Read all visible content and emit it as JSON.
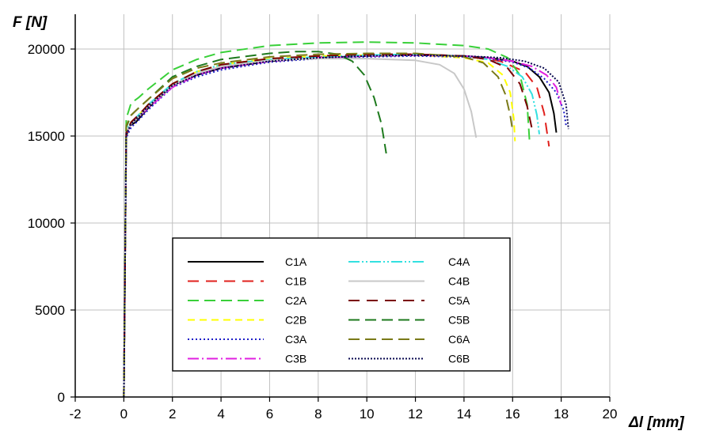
{
  "chart_data": {
    "type": "line",
    "xlabel": "Δl [mm]",
    "ylabel": "F [N]",
    "xlim": [
      -2,
      20
    ],
    "ylim": [
      0,
      22000
    ],
    "xticks": [
      "-2",
      "0",
      "2",
      "4",
      "6",
      "8",
      "10",
      "12",
      "14",
      "16",
      "18",
      "20"
    ],
    "yticks": [
      "0",
      "5000",
      "10000",
      "15000",
      "20000"
    ],
    "grid": "horizontal+vertical",
    "legend_position": "lower-center",
    "series": [
      {
        "name": "C1A",
        "color": "#000000",
        "dash": "solid",
        "x": [
          0,
          0.1,
          0.25,
          0.5,
          1,
          2,
          3,
          4,
          6,
          8,
          10,
          12,
          14,
          15,
          16,
          16.6,
          17.1,
          17.5,
          17.7,
          17.8
        ],
        "y": [
          0,
          15000,
          15600,
          15800,
          16600,
          17900,
          18500,
          18900,
          19300,
          19500,
          19600,
          19650,
          19600,
          19500,
          19300,
          19000,
          18400,
          17500,
          16300,
          15200
        ]
      },
      {
        "name": "C1B",
        "color": "#e0201c",
        "dash": "14,9",
        "x": [
          0,
          0.1,
          0.3,
          0.6,
          1,
          2,
          3,
          4,
          6,
          8,
          10,
          12,
          14,
          15.5,
          16.5,
          17,
          17.3,
          17.5
        ],
        "y": [
          0,
          15100,
          15700,
          16100,
          16700,
          17900,
          18600,
          19000,
          19350,
          19550,
          19650,
          19700,
          19600,
          19300,
          18700,
          17800,
          16300,
          14400
        ]
      },
      {
        "name": "C2A",
        "color": "#39d039",
        "dash": "14,7",
        "x": [
          0,
          0.1,
          0.3,
          0.6,
          1,
          2,
          3,
          4,
          6,
          8,
          10,
          12,
          14,
          15,
          15.8,
          16.3,
          16.6,
          16.7
        ],
        "y": [
          0,
          16000,
          16900,
          17200,
          17700,
          18800,
          19400,
          19800,
          20200,
          20350,
          20400,
          20350,
          20200,
          20000,
          19500,
          18500,
          16800,
          14600
        ]
      },
      {
        "name": "C2B",
        "color": "#ffff00",
        "dash": "9,6",
        "x": [
          0,
          0.1,
          0.3,
          0.6,
          1,
          2,
          3,
          4,
          6,
          8,
          10,
          12,
          14,
          15,
          15.6,
          15.9,
          16.05,
          16.1
        ],
        "y": [
          0,
          15200,
          15800,
          16200,
          16800,
          18000,
          18700,
          19100,
          19450,
          19600,
          19650,
          19650,
          19500,
          19200,
          18500,
          17500,
          16000,
          14700
        ]
      },
      {
        "name": "C3A",
        "color": "#1e1ec8",
        "dash": "2,3",
        "x": [
          0,
          0.1,
          0.3,
          0.6,
          1,
          2,
          3,
          4,
          6,
          8,
          10,
          12,
          14,
          15,
          16,
          16.7,
          17.3,
          17.8,
          18.1,
          18.2
        ],
        "y": [
          0,
          14900,
          15500,
          15900,
          16500,
          17800,
          18400,
          18800,
          19250,
          19450,
          19550,
          19600,
          19550,
          19450,
          19250,
          18900,
          18300,
          17500,
          16500,
          15600
        ]
      },
      {
        "name": "C3B",
        "color": "#e020e0",
        "dash": "14,4,2,4",
        "x": [
          0,
          0.1,
          0.3,
          0.6,
          1,
          2,
          3,
          4,
          6,
          8,
          10,
          12,
          14,
          15,
          16,
          16.8,
          17.4,
          17.8,
          18.0
        ],
        "y": [
          0,
          15100,
          15700,
          16100,
          16600,
          17800,
          18500,
          18900,
          19300,
          19500,
          19600,
          19650,
          19600,
          19500,
          19300,
          19000,
          18500,
          17800,
          16800
        ]
      },
      {
        "name": "C4A",
        "color": "#33e0e0",
        "dash": "14,3,2,3,2,3",
        "x": [
          0,
          0.1,
          0.3,
          0.6,
          1,
          2,
          3,
          4,
          6,
          8,
          10,
          12,
          14,
          15,
          15.8,
          16.4,
          16.8,
          17.0,
          17.1
        ],
        "y": [
          0,
          15300,
          15800,
          16200,
          16800,
          18000,
          18700,
          19100,
          19400,
          19550,
          19650,
          19700,
          19600,
          19400,
          19000,
          18400,
          17400,
          16200,
          15100
        ]
      },
      {
        "name": "C4B",
        "color": "#c8c8c8",
        "dash": "solid",
        "x": [
          0,
          0.1,
          0.3,
          0.6,
          1,
          2,
          3,
          4,
          6,
          8,
          10,
          11,
          12,
          13,
          13.6,
          14.0,
          14.3,
          14.5
        ],
        "y": [
          0,
          15200,
          15700,
          16100,
          16700,
          17900,
          18600,
          19000,
          19350,
          19450,
          19450,
          19400,
          19350,
          19100,
          18600,
          17700,
          16400,
          14900
        ]
      },
      {
        "name": "C5A",
        "color": "#7a0000",
        "dash": "14,9",
        "x": [
          0,
          0.1,
          0.3,
          0.6,
          1,
          2,
          3,
          4,
          6,
          8,
          10,
          12,
          14,
          15,
          15.8,
          16.3,
          16.6,
          16.8
        ],
        "y": [
          0,
          15200,
          15800,
          16200,
          16800,
          18000,
          18700,
          19100,
          19450,
          19600,
          19700,
          19700,
          19600,
          19400,
          18900,
          18000,
          16700,
          15400
        ]
      },
      {
        "name": "C5B",
        "color": "#1e7a1e",
        "dash": "14,7",
        "x": [
          0,
          0.1,
          0.3,
          0.6,
          1,
          2,
          3,
          4,
          6,
          7,
          8,
          8.8,
          9.4,
          9.9,
          10.3,
          10.6,
          10.8
        ],
        "y": [
          0,
          15500,
          16200,
          16600,
          17100,
          18400,
          19000,
          19400,
          19750,
          19850,
          19850,
          19700,
          19300,
          18500,
          17200,
          15700,
          14000
        ]
      },
      {
        "name": "C6A",
        "color": "#7a7a18",
        "dash": "14,7",
        "x": [
          0,
          0.1,
          0.3,
          0.6,
          1,
          2,
          3,
          4,
          6,
          8,
          10,
          12,
          14,
          14.8,
          15.4,
          15.7,
          15.9,
          16.0
        ],
        "y": [
          0,
          15600,
          16200,
          16600,
          17100,
          18300,
          18900,
          19200,
          19550,
          19700,
          19750,
          19750,
          19550,
          19200,
          18400,
          17400,
          16200,
          15300
        ]
      },
      {
        "name": "C6B",
        "color": "#0a0a50",
        "dash": "2,2",
        "x": [
          0,
          0.1,
          0.3,
          0.6,
          1,
          2,
          3,
          4,
          6,
          8,
          10,
          12,
          14,
          15.5,
          16.5,
          17.3,
          17.9,
          18.2,
          18.3
        ],
        "y": [
          0,
          15100,
          15700,
          16100,
          16700,
          17900,
          18500,
          18900,
          19300,
          19500,
          19600,
          19650,
          19600,
          19500,
          19300,
          18900,
          18100,
          16800,
          15400
        ]
      }
    ]
  }
}
